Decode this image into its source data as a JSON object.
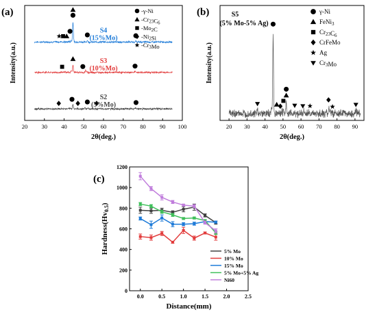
{
  "chart_data": [
    {
      "panel": "(a)",
      "type": "line",
      "xlabel": "2θ(deg.)",
      "ylabel": "Intensity(a.u.)",
      "xlim": [
        20,
        100
      ],
      "xticks": [
        20,
        30,
        40,
        50,
        60,
        70,
        80,
        90,
        100
      ],
      "legend": [
        {
          "marker": "circle",
          "label": "γ-Ni"
        },
        {
          "marker": "triangle",
          "label": "Cr23C6"
        },
        {
          "marker": "square",
          "label": "Mo2C"
        },
        {
          "marker": "diamond",
          "label": "Ni2Si"
        },
        {
          "marker": "star",
          "label": "Cr3Mo"
        }
      ],
      "series": [
        {
          "name": "S4",
          "sub": "(15%Mo)",
          "color": "#1e7bd8",
          "offset": 0.72,
          "peaks": [
            [
              38.5,
              0.03
            ],
            [
              42.5,
              0.03
            ],
            [
              43.6,
              0.05
            ],
            [
              44.5,
              0.75
            ],
            [
              51.8,
              0.06
            ],
            [
              76.4,
              0.03
            ]
          ],
          "markers": [
            {
              "x": 37.5,
              "sym": "star"
            },
            {
              "x": 39.5,
              "sym": "square"
            },
            {
              "x": 41.3,
              "sym": "triangle"
            },
            {
              "x": 43.0,
              "sym": "circle"
            },
            {
              "x": 44.5,
              "sym": "circle"
            },
            {
              "x": 44.5,
              "sym": "triangle"
            },
            {
              "x": 51.8,
              "sym": "circle"
            },
            {
              "x": 76.4,
              "sym": "circle"
            }
          ]
        },
        {
          "name": "S3",
          "sub": "(10%Mo)",
          "color": "#e23b3b",
          "offset": 0.42,
          "peaks": [
            [
              40.5,
              0.03
            ],
            [
              43.6,
              0.06
            ],
            [
              44.5,
              0.26
            ],
            [
              51.0,
              0.08
            ],
            [
              76.0,
              0.03
            ]
          ],
          "markers": [
            {
              "x": 39.0,
              "sym": "square"
            },
            {
              "x": 44.5,
              "sym": "triangle"
            },
            {
              "x": 49.5,
              "sym": "circle"
            },
            {
              "x": 76.0,
              "sym": "circle"
            }
          ]
        },
        {
          "name": "S2",
          "sub": "(5%Mo)",
          "color": "#444444",
          "offset": 0.06,
          "peaks": [
            [
              44.5,
              0.18
            ],
            [
              50.5,
              0.05
            ],
            [
              52.0,
              0.04
            ],
            [
              76.5,
              0.03
            ]
          ],
          "markers": [
            {
              "x": 37.3,
              "sym": "diamond"
            },
            {
              "x": 44.0,
              "sym": "circle"
            },
            {
              "x": 47.0,
              "sym": "diamond"
            },
            {
              "x": 51.8,
              "sym": "circle"
            },
            {
              "x": 56.5,
              "sym": "diamond"
            },
            {
              "x": 76.5,
              "sym": "circle"
            }
          ]
        }
      ]
    },
    {
      "panel": "(b)",
      "type": "line",
      "title": "S5",
      "subtitle": "(5% Mo-5% Ag)",
      "xlabel": "2θ(deg.)",
      "ylabel": "Intensity(a.u.)",
      "xlim": [
        15,
        95
      ],
      "xticks": [
        20,
        30,
        40,
        50,
        60,
        70,
        80,
        90
      ],
      "legend": [
        {
          "marker": "circle",
          "label": "γ-Ni"
        },
        {
          "marker": "triangle",
          "label": "FeNi3"
        },
        {
          "marker": "square",
          "label": "Cr23C6"
        },
        {
          "marker": "diamond",
          "label": "CrFeMo"
        },
        {
          "marker": "star",
          "label": "Ag"
        },
        {
          "marker": "triangle-down",
          "label": "Cr3Mo"
        }
      ],
      "series": [
        {
          "name": "S5",
          "color": "#555555",
          "peaks": [
            [
              35.8,
              0.05
            ],
            [
              43.6,
              0.06
            ],
            [
              44.5,
              0.95
            ],
            [
              49.3,
              0.03
            ],
            [
              50.3,
              0.05
            ],
            [
              51.8,
              0.14
            ],
            [
              56.5,
              0.03
            ],
            [
              61.5,
              0.03
            ],
            [
              64.5,
              0.03
            ],
            [
              75.5,
              0.08
            ],
            [
              76.3,
              0.04
            ],
            [
              90.5,
              0.04
            ]
          ],
          "markers": [
            {
              "x": 35.8,
              "sym": "triangle-down"
            },
            {
              "x": 44.5,
              "sym": "circle"
            },
            {
              "x": 46.5,
              "sym": "triangle"
            },
            {
              "x": 48.5,
              "sym": "diamond"
            },
            {
              "x": 50.2,
              "sym": "square"
            },
            {
              "x": 51.8,
              "sym": "triangle"
            },
            {
              "x": 51.8,
              "sym": "circle"
            },
            {
              "x": 56.5,
              "sym": "triangle-down"
            },
            {
              "x": 61.0,
              "sym": "triangle-down"
            },
            {
              "x": 65.0,
              "sym": "star"
            },
            {
              "x": 75.3,
              "sym": "diamond"
            },
            {
              "x": 77.5,
              "sym": "star"
            },
            {
              "x": 90.5,
              "sym": "triangle-down"
            }
          ]
        }
      ]
    },
    {
      "panel": "(c)",
      "type": "line",
      "xlabel": "Distance(mm)",
      "ylabel": "Hardness(Hv0.5)",
      "xlim": [
        -0.25,
        2.5
      ],
      "ylim": [
        0,
        1200
      ],
      "xticks": [
        0.0,
        0.5,
        1.0,
        1.5,
        2.0,
        2.5
      ],
      "yticks": [
        0,
        200,
        400,
        600,
        800,
        1000,
        1200
      ],
      "legend_position": "bottom-right",
      "x": [
        0,
        0.25,
        0.5,
        0.75,
        1.0,
        1.25,
        1.5,
        1.75
      ],
      "series": [
        {
          "name": "5% Mo",
          "color": "#404040",
          "values": [
            780,
            775,
            780,
            760,
            790,
            810,
            730,
            660
          ],
          "errors": [
            30,
            25,
            20,
            15,
            25,
            30,
            15,
            15
          ]
        },
        {
          "name": "10% Mo",
          "color": "#e23b3b",
          "values": [
            525,
            515,
            555,
            470,
            585,
            510,
            560,
            520
          ],
          "errors": [
            25,
            25,
            20,
            10,
            30,
            20,
            10,
            30
          ]
        },
        {
          "name": "15% Mo",
          "color": "#1e7bd8",
          "values": [
            700,
            640,
            705,
            645,
            645,
            650,
            670,
            665
          ],
          "errors": [
            15,
            35,
            30,
            25,
            15,
            15,
            15,
            10
          ]
        },
        {
          "name": "5% Mo+5% Ag",
          "color": "#3fbf5a",
          "values": [
            840,
            820,
            765,
            735,
            700,
            705,
            680,
            560
          ],
          "errors": [
            15,
            15,
            15,
            15,
            10,
            10,
            10,
            15
          ]
        },
        {
          "name": "Ni60",
          "color": "#c07ddc",
          "values": [
            1110,
            990,
            905,
            860,
            830,
            820,
            660,
            580
          ],
          "errors": [
            35,
            20,
            25,
            15,
            10,
            15,
            15,
            20
          ]
        }
      ]
    }
  ]
}
